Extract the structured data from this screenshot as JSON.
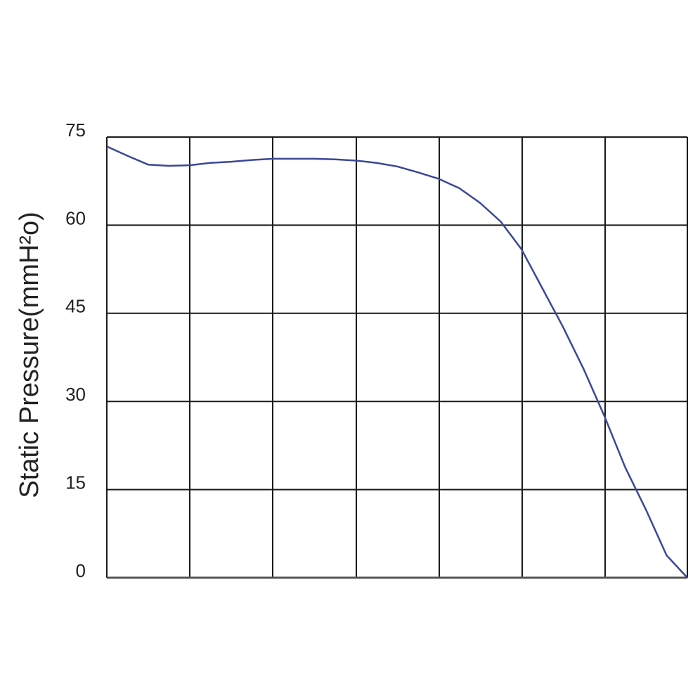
{
  "chart_data": {
    "type": "line",
    "y_label": "Static Pressure(mmH²o)",
    "categories": [
      null,
      null,
      null,
      null,
      null,
      null,
      null,
      null,
      null,
      null,
      null,
      null,
      null,
      null,
      null,
      null,
      null,
      null,
      null,
      null,
      null,
      null,
      null,
      null,
      null,
      null,
      null,
      null,
      null
    ],
    "series": [
      {
        "color": "#3a4896",
        "values": [
          73.4,
          71.8,
          70.3,
          70.1,
          70.2,
          70.6,
          70.8,
          71.1,
          71.3,
          71.3,
          71.3,
          71.2,
          71.0,
          70.6,
          70.0,
          69.0,
          67.9,
          66.3,
          63.8,
          60.6,
          55.9,
          49.3,
          42.7,
          35.5,
          27.5,
          18.8,
          11.6,
          3.8,
          0
        ]
      }
    ],
    "ylim": [
      0,
      75
    ],
    "yticks": [
      0,
      15,
      30,
      45,
      60,
      75
    ],
    "grid": true
  }
}
